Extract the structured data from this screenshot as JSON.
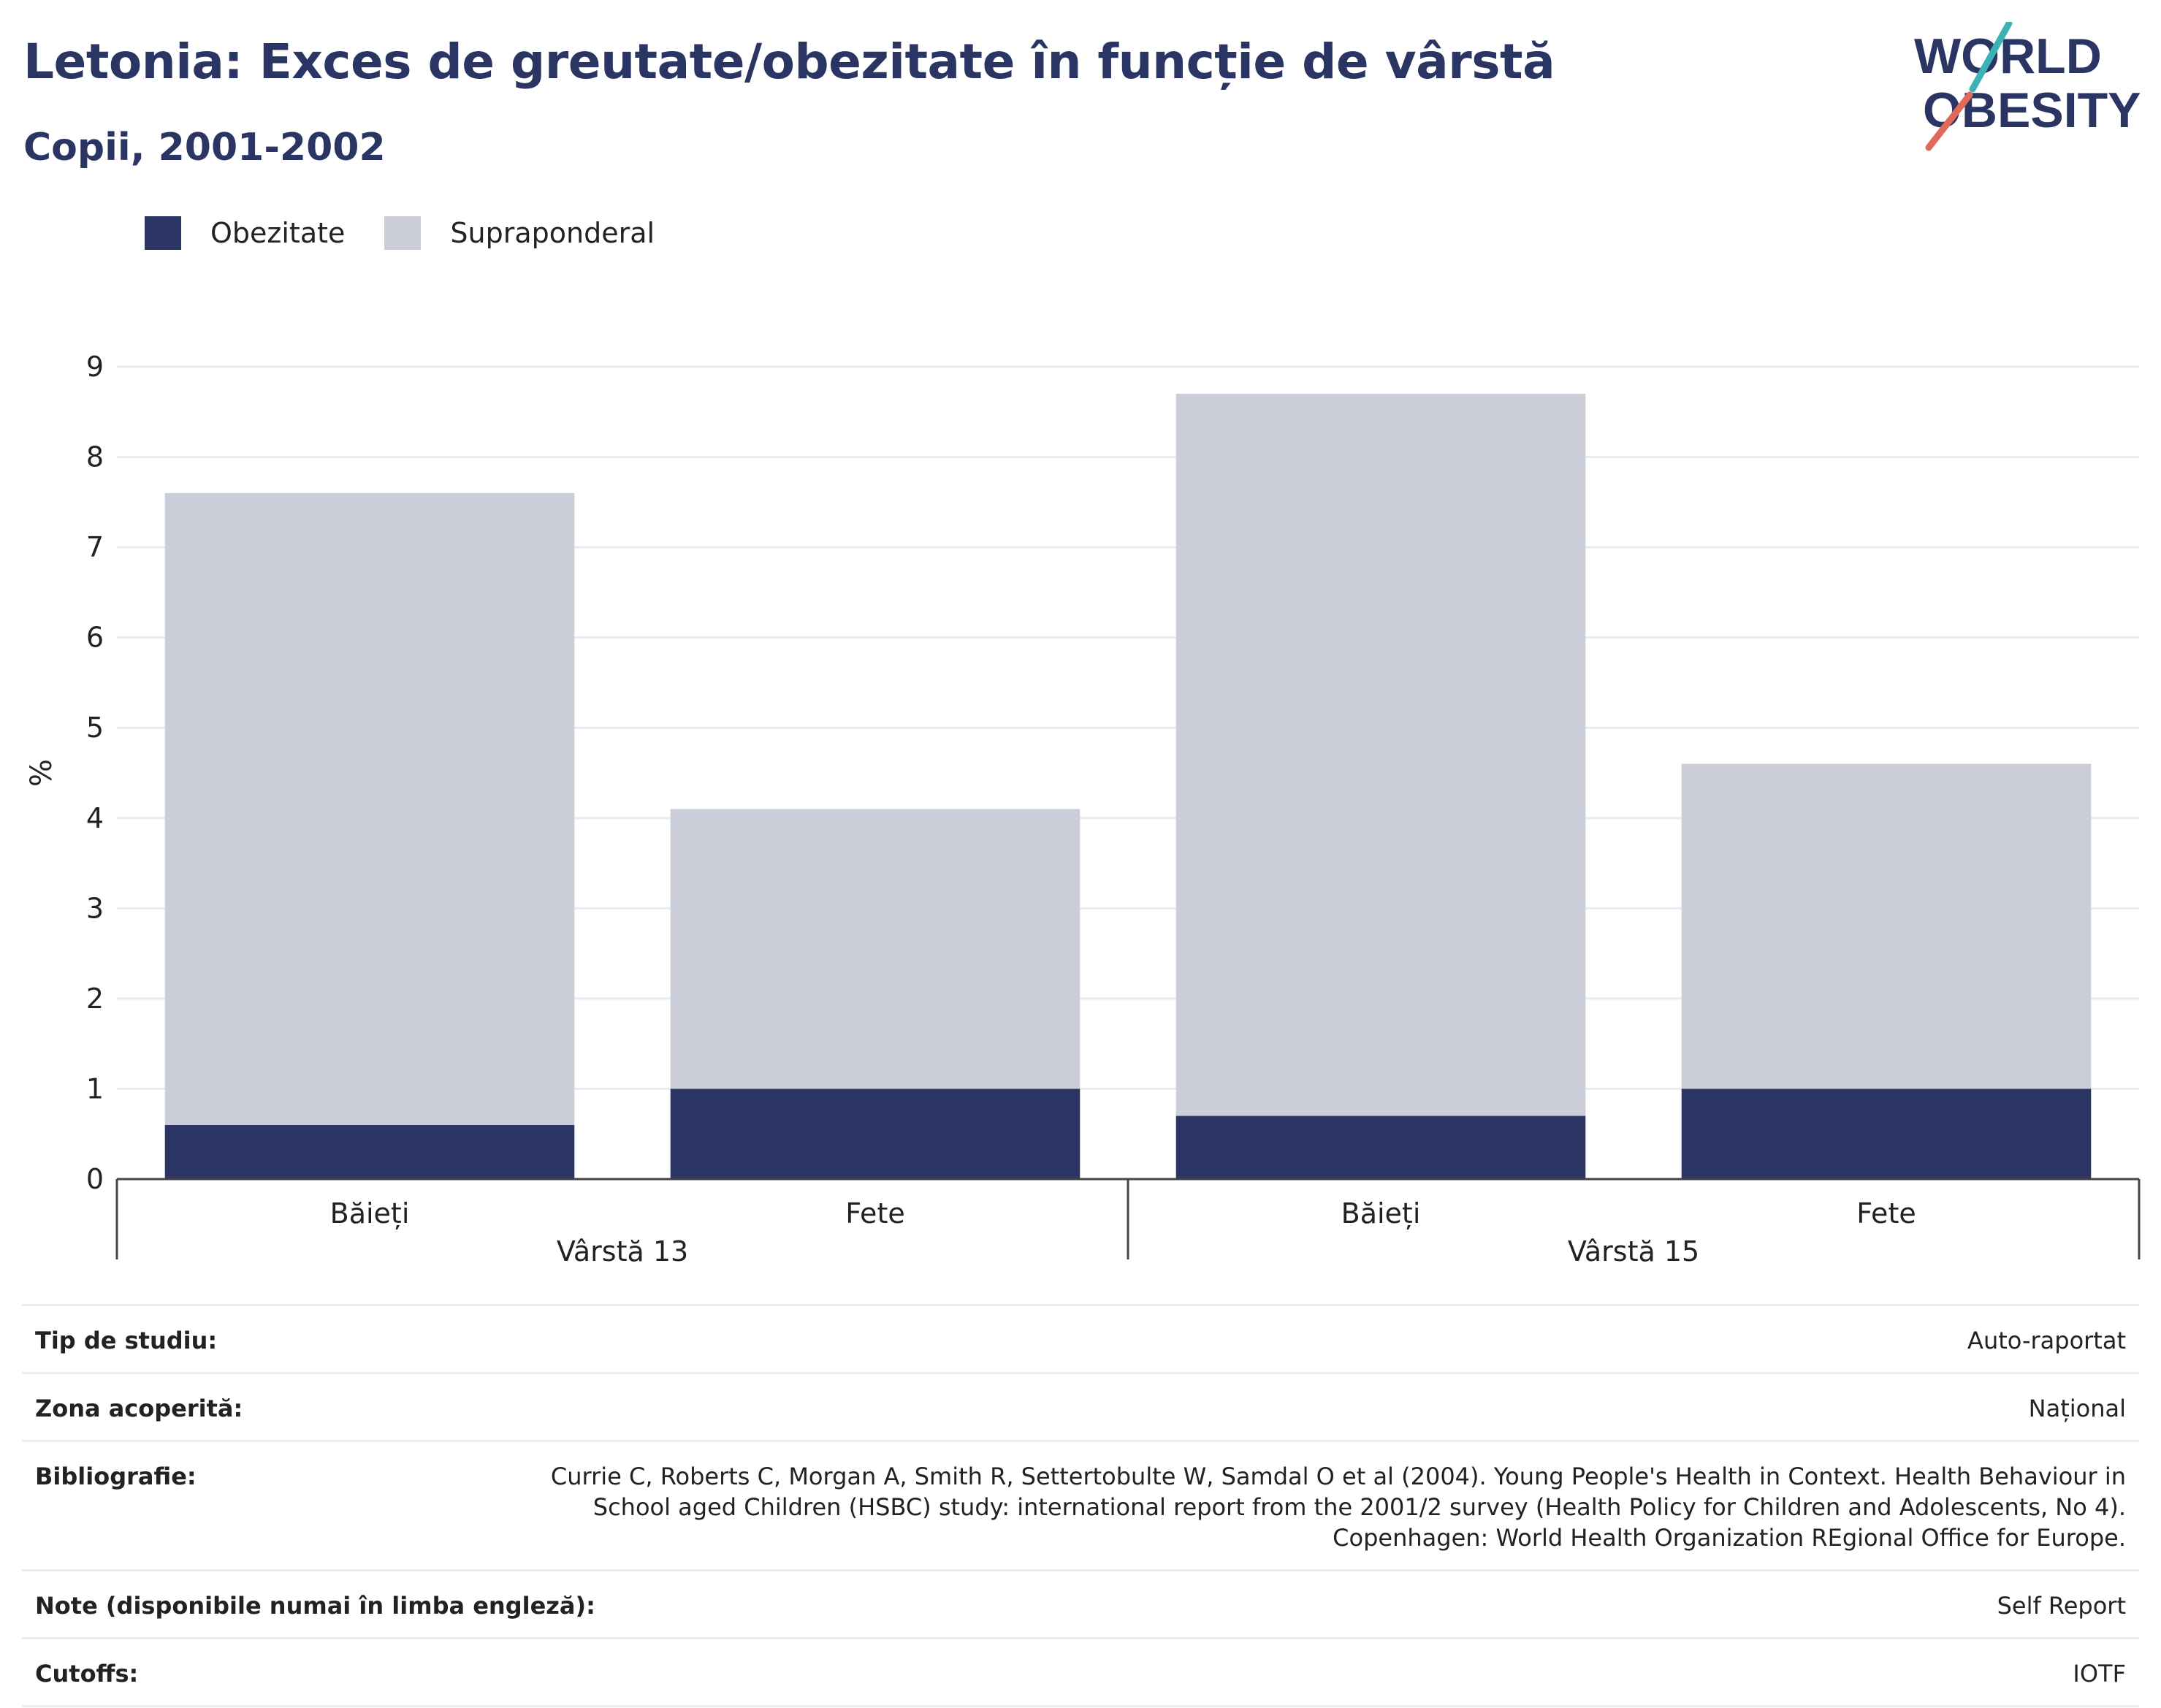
{
  "header": {
    "title": "Letonia: Exces de greutate/obezitate în funcție de vârstă",
    "subtitle": "Copii, 2001-2002"
  },
  "logo": {
    "line1": "WORLD",
    "line2": "OBESITY"
  },
  "legend": [
    {
      "label": "Obezitate",
      "color": "#2a3563"
    },
    {
      "label": "Supraponderal",
      "color": "#cbcdd9"
    }
  ],
  "chart_data": {
    "type": "bar",
    "stacked": true,
    "ylabel": "%",
    "ylim": [
      0,
      9
    ],
    "yticks": [
      0,
      1,
      2,
      3,
      4,
      5,
      6,
      7,
      8,
      9
    ],
    "grid": true,
    "legend_position": "top-left",
    "groups": [
      {
        "label": "Vârstă 13",
        "categories": [
          "Băieți",
          "Fete"
        ]
      },
      {
        "label": "Vârstă 15",
        "categories": [
          "Băieți",
          "Fete"
        ]
      }
    ],
    "categories": [
      "Băieți",
      "Fete",
      "Băieți",
      "Fete"
    ],
    "series": [
      {
        "name": "Obezitate",
        "color": "#2a3563",
        "values": [
          0.6,
          1.0,
          0.7,
          1.0
        ]
      },
      {
        "name": "Supraponderal",
        "color": "#cbcdd9",
        "values": [
          7.0,
          3.1,
          8.0,
          3.6
        ]
      }
    ]
  },
  "info": [
    {
      "label": "Tip de studiu:",
      "value": "Auto-raportat"
    },
    {
      "label": "Zona acoperită:",
      "value": "Național"
    },
    {
      "label": "Bibliografie:",
      "value": "Currie C, Roberts C, Morgan A, Smith R, Settertobulte W, Samdal O et al (2004). Young People's Health in Context. Health Behaviour in School aged Children (HSBC) study: international report from the 2001/2 survey (Health Policy for Children and Adolescents, No 4). Copenhagen: World Health Organization REgional Office for Europe."
    },
    {
      "label": "Note (disponibile numai în limba engleză):",
      "value": "Self Report"
    },
    {
      "label": "Cutoffs:",
      "value": "IOTF"
    }
  ]
}
